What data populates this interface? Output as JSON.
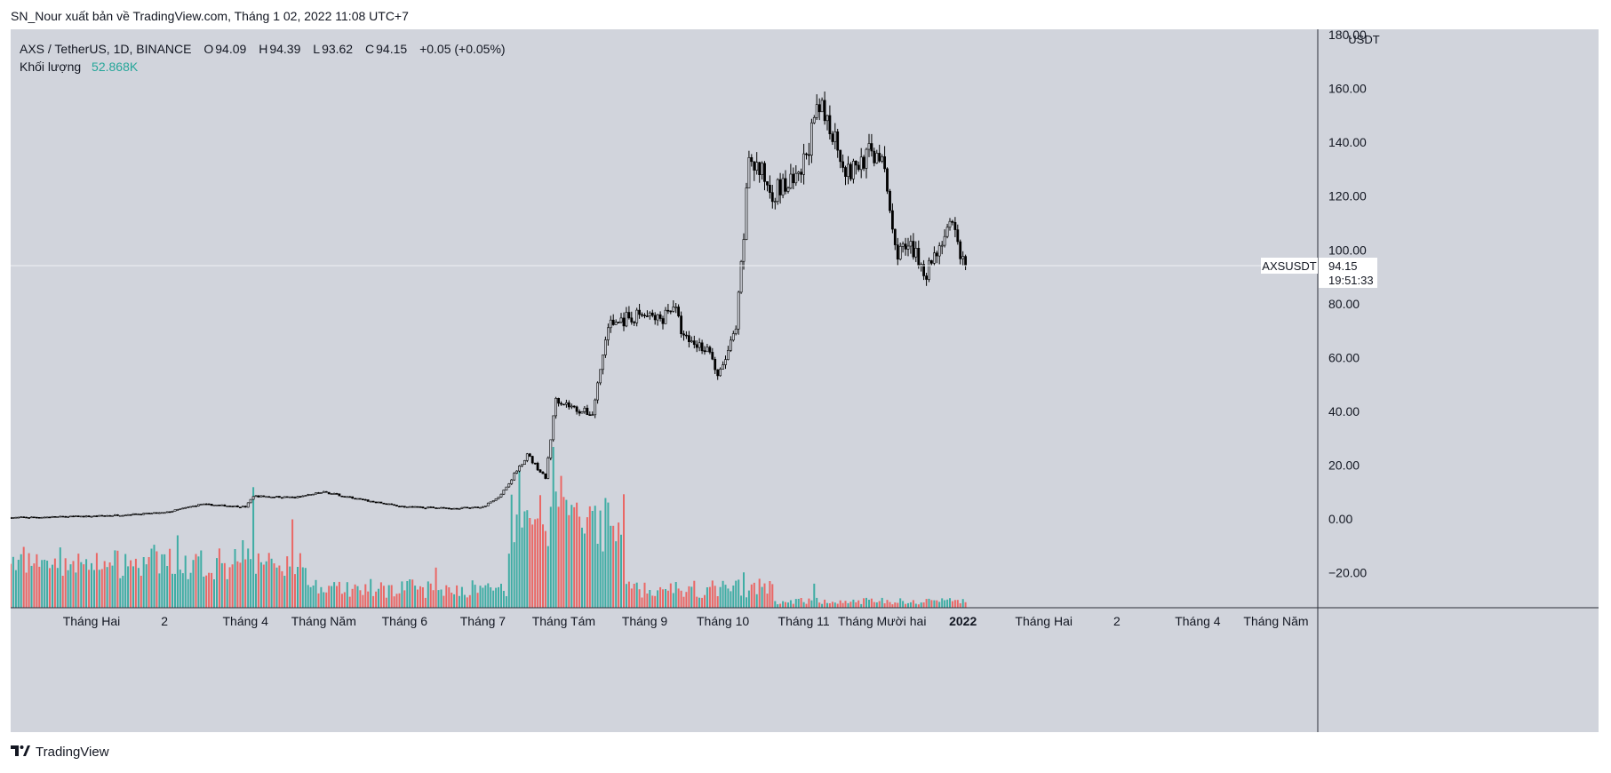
{
  "header": {
    "publisher_line": "SN_Nour xuất bản về TradingView.com, Tháng 1 02, 2022 11:08 UTC+7"
  },
  "legend": {
    "symbol_line": "AXS / TetherUS, 1D, BINANCE",
    "o_label": "O",
    "o_value": "94.09",
    "h_label": "H",
    "h_value": "94.39",
    "l_label": "L",
    "l_value": "93.62",
    "c_label": "C",
    "c_value": "94.15",
    "change": "+0.05 (+0.05%)",
    "volume_label": "Khối lượng",
    "volume_value": "52.868K"
  },
  "price_tag": {
    "symbol": "AXSUSDT",
    "price": "94.15",
    "countdown": "19:51:33"
  },
  "footer": {
    "brand": "TradingView"
  },
  "colors": {
    "up_volume": "#26a69a",
    "down_volume": "#ef5350",
    "candles": "#000000",
    "background": "#d1d4dc"
  },
  "chart_data": {
    "type": "candlestick",
    "symbol": "AXS / TetherUS",
    "interval": "1D",
    "exchange": "BINANCE",
    "y_axis": {
      "unit": "USDT",
      "range": [
        -33,
        182
      ],
      "ticks": [
        -20,
        0,
        20,
        40,
        60,
        80,
        100,
        120,
        140,
        160,
        180
      ],
      "tick_labels": [
        "−20.00",
        "0.00",
        "20.00",
        "40.00",
        "60.00",
        "80.00",
        "100.00",
        "120.00",
        "140.00",
        "160.00",
        "180.00"
      ]
    },
    "x_axis": {
      "labels": [
        {
          "text": "Tháng Hai",
          "date": "2021-02-01"
        },
        {
          "text": "2",
          "date": "2021-03-01"
        },
        {
          "text": "Tháng 4",
          "date": "2021-04-01"
        },
        {
          "text": "Tháng Năm",
          "date": "2021-05-01"
        },
        {
          "text": "Tháng 6",
          "date": "2021-06-01"
        },
        {
          "text": "Tháng 7",
          "date": "2021-07-01"
        },
        {
          "text": "Tháng Tám",
          "date": "2021-08-01"
        },
        {
          "text": "Tháng 9",
          "date": "2021-09-01"
        },
        {
          "text": "Tháng 10",
          "date": "2021-10-01"
        },
        {
          "text": "Tháng 11",
          "date": "2021-11-01"
        },
        {
          "text": "Tháng Mười hai",
          "date": "2021-12-01"
        },
        {
          "text": "2022",
          "date": "2022-01-01",
          "bold": true
        },
        {
          "text": "Tháng Hai",
          "date": "2022-02-01"
        },
        {
          "text": "2",
          "date": "2022-03-01"
        },
        {
          "text": "Tháng 4",
          "date": "2022-04-01"
        },
        {
          "text": "Tháng Năm",
          "date": "2022-05-01"
        }
      ]
    },
    "last_price": 94.15,
    "price_anchors": [
      [
        "2021-01-01",
        0.5
      ],
      [
        "2021-02-01",
        1.0
      ],
      [
        "2021-03-01",
        2.3
      ],
      [
        "2021-03-15",
        5.5
      ],
      [
        "2021-04-01",
        4.5
      ],
      [
        "2021-04-04",
        8.5
      ],
      [
        "2021-04-20",
        8.0
      ],
      [
        "2021-05-01",
        10.0
      ],
      [
        "2021-05-19",
        6.5
      ],
      [
        "2021-06-01",
        4.5
      ],
      [
        "2021-06-20",
        4.0
      ],
      [
        "2021-07-01",
        4.5
      ],
      [
        "2021-07-08",
        9.0
      ],
      [
        "2021-07-18",
        24.0
      ],
      [
        "2021-07-25",
        15.0
      ],
      [
        "2021-07-29",
        45.0
      ],
      [
        "2021-08-05",
        41.0
      ],
      [
        "2021-08-12",
        39.0
      ],
      [
        "2021-08-18",
        72.0
      ],
      [
        "2021-08-30",
        76.0
      ],
      [
        "2021-09-07",
        74.0
      ],
      [
        "2021-09-12",
        80.0
      ],
      [
        "2021-09-16",
        67.0
      ],
      [
        "2021-09-26",
        63.0
      ],
      [
        "2021-09-29",
        52.0
      ],
      [
        "2021-10-06",
        70.0
      ],
      [
        "2021-10-09",
        105.0
      ],
      [
        "2021-10-11",
        135.0
      ],
      [
        "2021-10-20",
        122.0
      ],
      [
        "2021-10-30",
        125.0
      ],
      [
        "2021-11-03",
        140.0
      ],
      [
        "2021-11-07",
        152.0
      ],
      [
        "2021-11-12",
        145.0
      ],
      [
        "2021-11-18",
        128.0
      ],
      [
        "2021-11-25",
        135.0
      ],
      [
        "2021-11-30",
        136.0
      ],
      [
        "2021-12-03",
        122.0
      ],
      [
        "2021-12-06",
        100.0
      ],
      [
        "2021-12-12",
        100.0
      ],
      [
        "2021-12-18",
        92.0
      ],
      [
        "2021-12-24",
        104.0
      ],
      [
        "2021-12-28",
        108.0
      ],
      [
        "2022-01-01",
        96.0
      ],
      [
        "2022-01-02",
        94.15
      ]
    ],
    "volume_spikes": [
      [
        "2021-03-06",
        0.45
      ],
      [
        "2021-03-31",
        0.42
      ],
      [
        "2021-04-04",
        0.75
      ],
      [
        "2021-04-19",
        0.55
      ],
      [
        "2021-06-13",
        0.25
      ],
      [
        "2021-07-15",
        0.85
      ],
      [
        "2021-07-23",
        0.7
      ],
      [
        "2021-07-28",
        1.0
      ],
      [
        "2021-07-31",
        0.82
      ],
      [
        "2021-08-16",
        0.35
      ],
      [
        "2021-10-09",
        0.22
      ],
      [
        "2021-11-05",
        0.15
      ]
    ]
  }
}
